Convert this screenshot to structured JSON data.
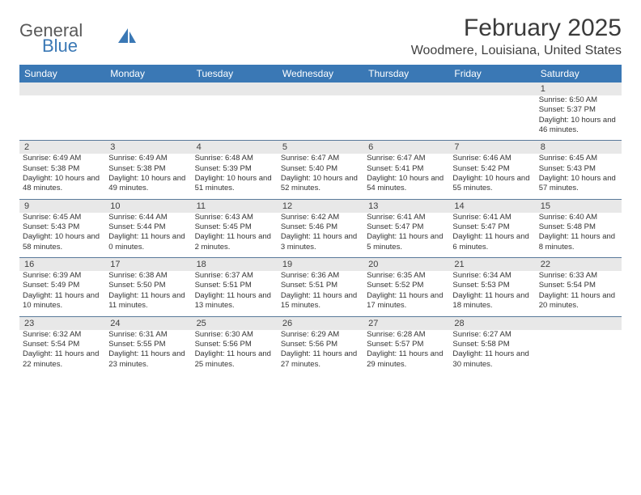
{
  "brand": {
    "word1": "General",
    "word2": "Blue",
    "logo_color": "#3a78b5"
  },
  "title": "February 2025",
  "location": "Woodmere, Louisiana, United States",
  "colors": {
    "header_bg": "#3a78b5",
    "header_text": "#ffffff",
    "daynum_bg": "#e8e8e8",
    "border": "#5a7a9a",
    "text": "#333333"
  },
  "day_names": [
    "Sunday",
    "Monday",
    "Tuesday",
    "Wednesday",
    "Thursday",
    "Friday",
    "Saturday"
  ],
  "weeks": [
    [
      {
        "n": "",
        "sr": "",
        "ss": "",
        "dl": ""
      },
      {
        "n": "",
        "sr": "",
        "ss": "",
        "dl": ""
      },
      {
        "n": "",
        "sr": "",
        "ss": "",
        "dl": ""
      },
      {
        "n": "",
        "sr": "",
        "ss": "",
        "dl": ""
      },
      {
        "n": "",
        "sr": "",
        "ss": "",
        "dl": ""
      },
      {
        "n": "",
        "sr": "",
        "ss": "",
        "dl": ""
      },
      {
        "n": "1",
        "sr": "Sunrise: 6:50 AM",
        "ss": "Sunset: 5:37 PM",
        "dl": "Daylight: 10 hours and 46 minutes."
      }
    ],
    [
      {
        "n": "2",
        "sr": "Sunrise: 6:49 AM",
        "ss": "Sunset: 5:38 PM",
        "dl": "Daylight: 10 hours and 48 minutes."
      },
      {
        "n": "3",
        "sr": "Sunrise: 6:49 AM",
        "ss": "Sunset: 5:38 PM",
        "dl": "Daylight: 10 hours and 49 minutes."
      },
      {
        "n": "4",
        "sr": "Sunrise: 6:48 AM",
        "ss": "Sunset: 5:39 PM",
        "dl": "Daylight: 10 hours and 51 minutes."
      },
      {
        "n": "5",
        "sr": "Sunrise: 6:47 AM",
        "ss": "Sunset: 5:40 PM",
        "dl": "Daylight: 10 hours and 52 minutes."
      },
      {
        "n": "6",
        "sr": "Sunrise: 6:47 AM",
        "ss": "Sunset: 5:41 PM",
        "dl": "Daylight: 10 hours and 54 minutes."
      },
      {
        "n": "7",
        "sr": "Sunrise: 6:46 AM",
        "ss": "Sunset: 5:42 PM",
        "dl": "Daylight: 10 hours and 55 minutes."
      },
      {
        "n": "8",
        "sr": "Sunrise: 6:45 AM",
        "ss": "Sunset: 5:43 PM",
        "dl": "Daylight: 10 hours and 57 minutes."
      }
    ],
    [
      {
        "n": "9",
        "sr": "Sunrise: 6:45 AM",
        "ss": "Sunset: 5:43 PM",
        "dl": "Daylight: 10 hours and 58 minutes."
      },
      {
        "n": "10",
        "sr": "Sunrise: 6:44 AM",
        "ss": "Sunset: 5:44 PM",
        "dl": "Daylight: 11 hours and 0 minutes."
      },
      {
        "n": "11",
        "sr": "Sunrise: 6:43 AM",
        "ss": "Sunset: 5:45 PM",
        "dl": "Daylight: 11 hours and 2 minutes."
      },
      {
        "n": "12",
        "sr": "Sunrise: 6:42 AM",
        "ss": "Sunset: 5:46 PM",
        "dl": "Daylight: 11 hours and 3 minutes."
      },
      {
        "n": "13",
        "sr": "Sunrise: 6:41 AM",
        "ss": "Sunset: 5:47 PM",
        "dl": "Daylight: 11 hours and 5 minutes."
      },
      {
        "n": "14",
        "sr": "Sunrise: 6:41 AM",
        "ss": "Sunset: 5:47 PM",
        "dl": "Daylight: 11 hours and 6 minutes."
      },
      {
        "n": "15",
        "sr": "Sunrise: 6:40 AM",
        "ss": "Sunset: 5:48 PM",
        "dl": "Daylight: 11 hours and 8 minutes."
      }
    ],
    [
      {
        "n": "16",
        "sr": "Sunrise: 6:39 AM",
        "ss": "Sunset: 5:49 PM",
        "dl": "Daylight: 11 hours and 10 minutes."
      },
      {
        "n": "17",
        "sr": "Sunrise: 6:38 AM",
        "ss": "Sunset: 5:50 PM",
        "dl": "Daylight: 11 hours and 11 minutes."
      },
      {
        "n": "18",
        "sr": "Sunrise: 6:37 AM",
        "ss": "Sunset: 5:51 PM",
        "dl": "Daylight: 11 hours and 13 minutes."
      },
      {
        "n": "19",
        "sr": "Sunrise: 6:36 AM",
        "ss": "Sunset: 5:51 PM",
        "dl": "Daylight: 11 hours and 15 minutes."
      },
      {
        "n": "20",
        "sr": "Sunrise: 6:35 AM",
        "ss": "Sunset: 5:52 PM",
        "dl": "Daylight: 11 hours and 17 minutes."
      },
      {
        "n": "21",
        "sr": "Sunrise: 6:34 AM",
        "ss": "Sunset: 5:53 PM",
        "dl": "Daylight: 11 hours and 18 minutes."
      },
      {
        "n": "22",
        "sr": "Sunrise: 6:33 AM",
        "ss": "Sunset: 5:54 PM",
        "dl": "Daylight: 11 hours and 20 minutes."
      }
    ],
    [
      {
        "n": "23",
        "sr": "Sunrise: 6:32 AM",
        "ss": "Sunset: 5:54 PM",
        "dl": "Daylight: 11 hours and 22 minutes."
      },
      {
        "n": "24",
        "sr": "Sunrise: 6:31 AM",
        "ss": "Sunset: 5:55 PM",
        "dl": "Daylight: 11 hours and 23 minutes."
      },
      {
        "n": "25",
        "sr": "Sunrise: 6:30 AM",
        "ss": "Sunset: 5:56 PM",
        "dl": "Daylight: 11 hours and 25 minutes."
      },
      {
        "n": "26",
        "sr": "Sunrise: 6:29 AM",
        "ss": "Sunset: 5:56 PM",
        "dl": "Daylight: 11 hours and 27 minutes."
      },
      {
        "n": "27",
        "sr": "Sunrise: 6:28 AM",
        "ss": "Sunset: 5:57 PM",
        "dl": "Daylight: 11 hours and 29 minutes."
      },
      {
        "n": "28",
        "sr": "Sunrise: 6:27 AM",
        "ss": "Sunset: 5:58 PM",
        "dl": "Daylight: 11 hours and 30 minutes."
      },
      {
        "n": "",
        "sr": "",
        "ss": "",
        "dl": ""
      }
    ]
  ]
}
